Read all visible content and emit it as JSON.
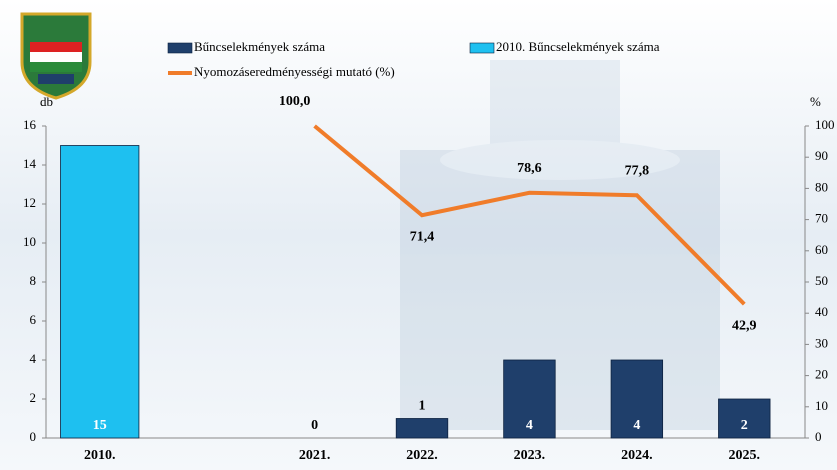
{
  "chart_data": {
    "type": "bar_line",
    "categories": [
      "2010.",
      null,
      "2021.",
      "2022.",
      "2023.",
      "2024.",
      "2025."
    ],
    "series": [
      {
        "name": "Bűncselekmények száma",
        "color": "#1f3f6b",
        "type": "bar",
        "values": [
          null,
          null,
          0,
          1,
          4,
          4,
          2
        ]
      },
      {
        "name": "2010. Bűncselekmények száma",
        "color": "#1ec0f0",
        "type": "bar",
        "values": [
          15,
          null,
          null,
          null,
          null,
          null,
          null
        ]
      },
      {
        "name": "Nyomozáseredményességi mutató (%)",
        "color": "#f07c2a",
        "type": "line",
        "axis": "y2",
        "values": [
          null,
          null,
          100.0,
          71.4,
          78.6,
          77.8,
          42.9
        ],
        "value_labels": [
          null,
          null,
          "100,0",
          "71,4",
          "78,6",
          "77,8",
          "42,9"
        ]
      }
    ],
    "ylabel": "db",
    "y2label": "%",
    "ylim": [
      0,
      16
    ],
    "yticks": [
      0,
      2,
      4,
      6,
      8,
      10,
      12,
      14,
      16
    ],
    "y2lim": [
      0,
      100
    ],
    "y2ticks": [
      0,
      10,
      20,
      30,
      40,
      50,
      60,
      70,
      80,
      90,
      100
    ]
  }
}
